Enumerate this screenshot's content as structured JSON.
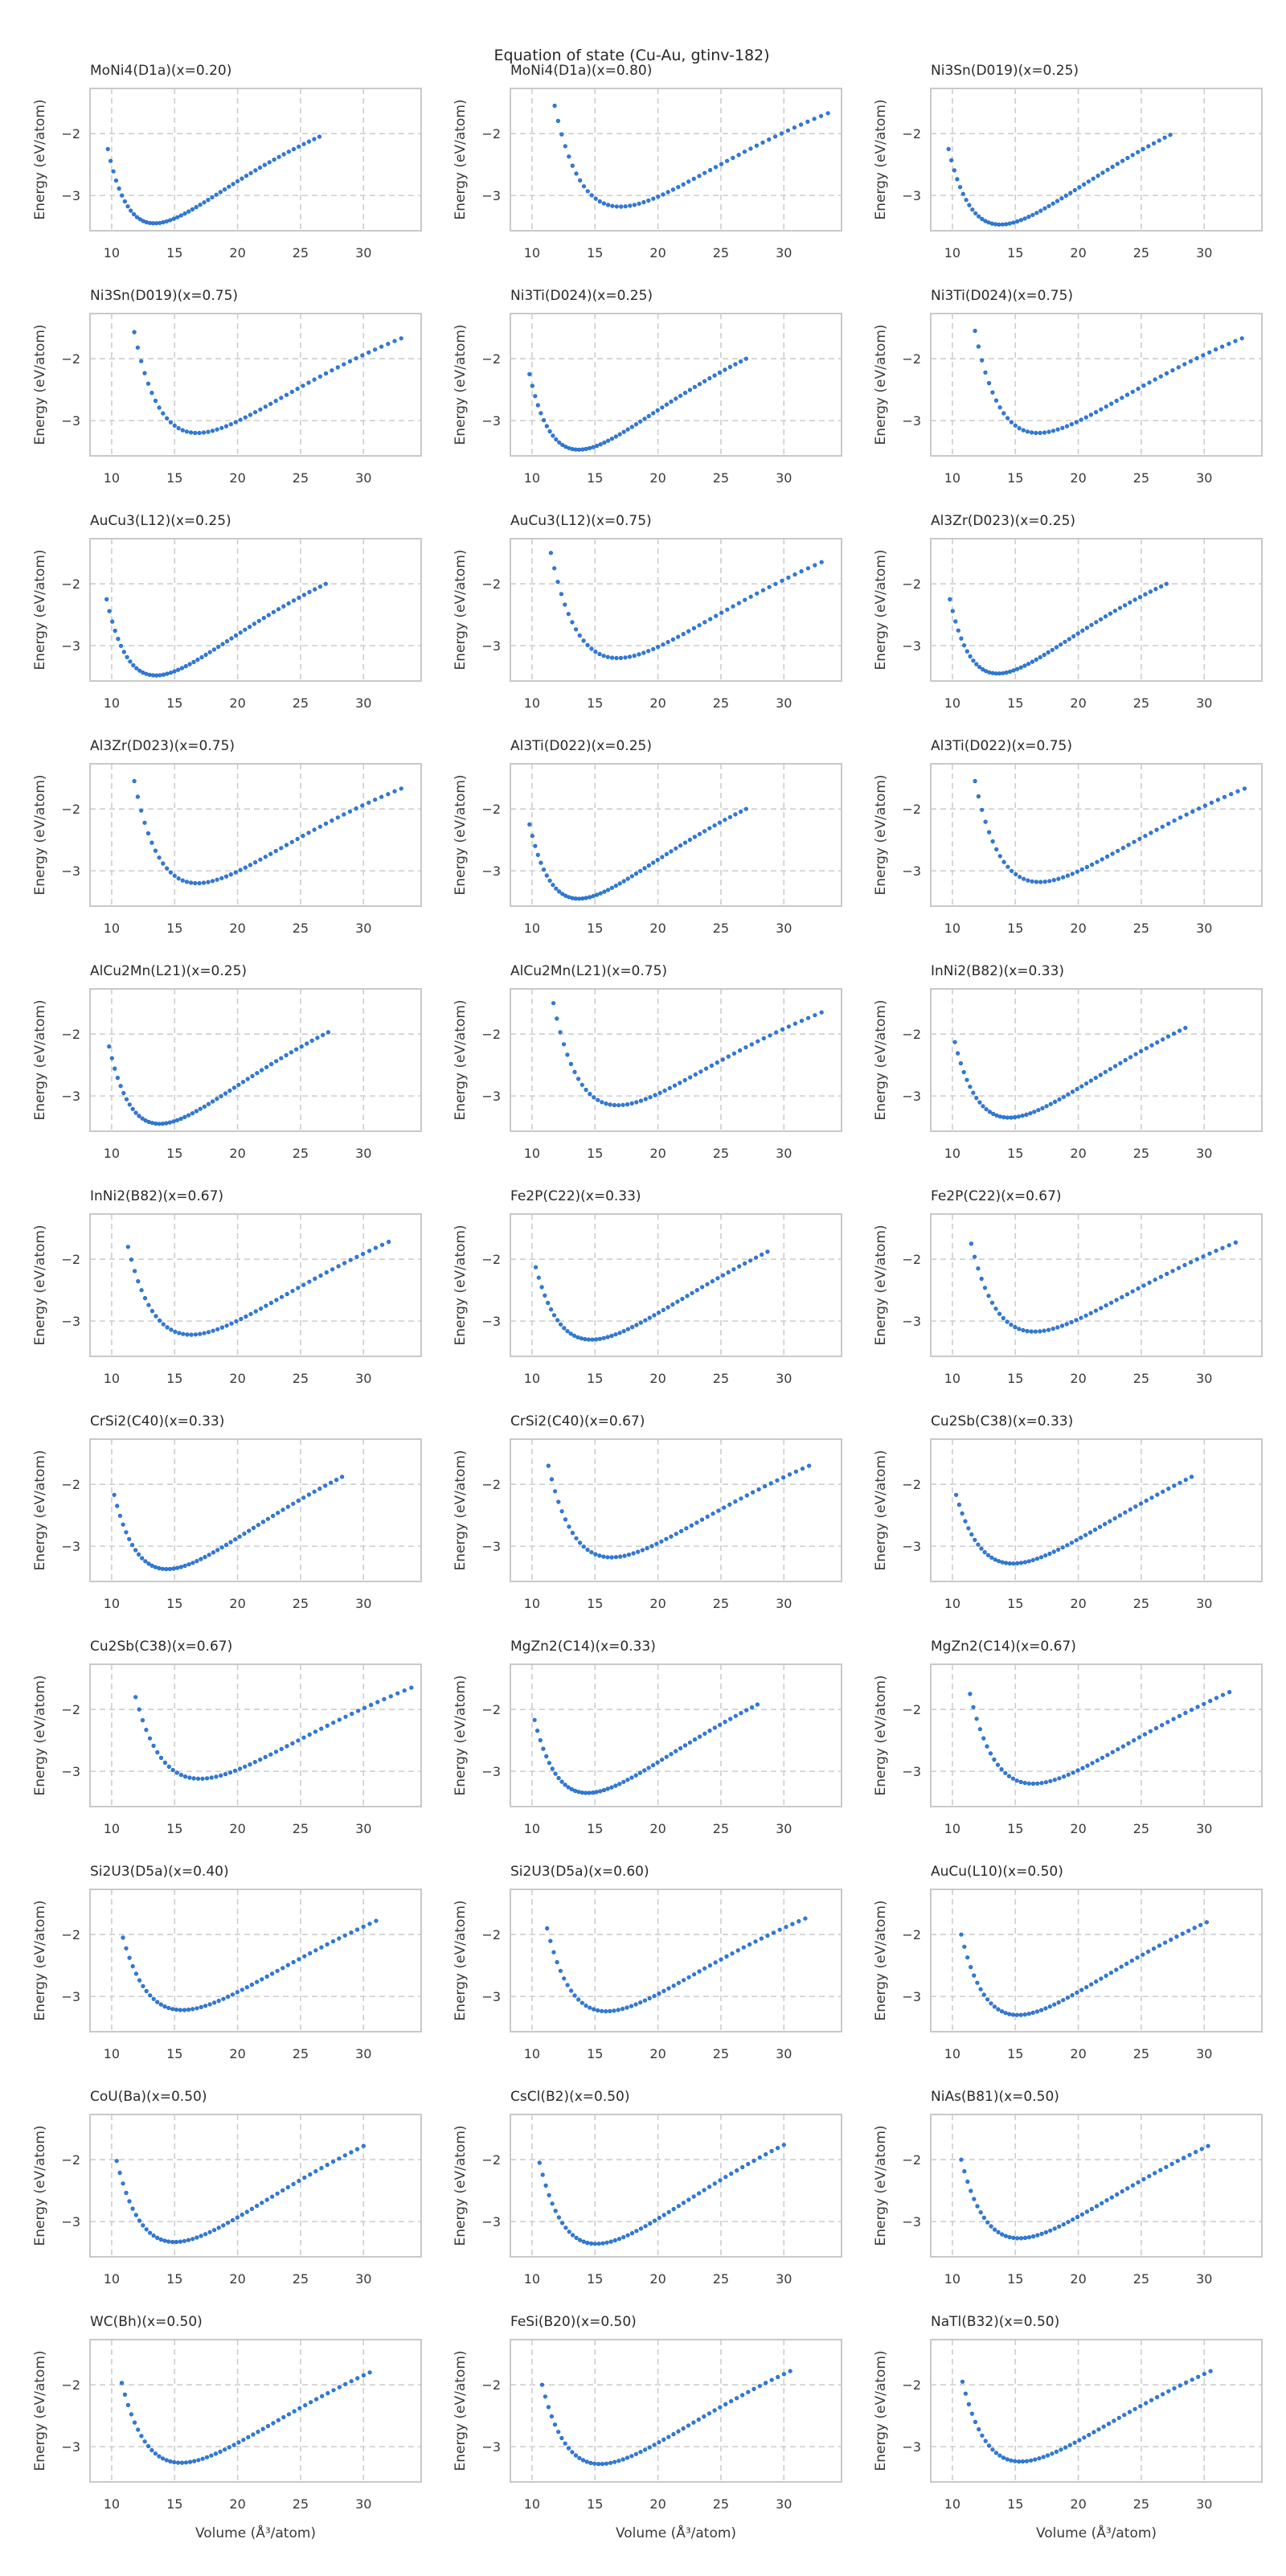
{
  "figure": {
    "suptitle": "Equation of state (Cu-Au, gtinv-182)",
    "colors": {
      "marker_fill": "#2e7cdf",
      "marker_edge": "#1a5cb0",
      "grid": "#cdcdcd",
      "spine": "#c9c9c9",
      "tick_text": "#3a3a3a",
      "title_text": "#2a2a2a",
      "background": "#ffffff"
    }
  },
  "chart_data": {
    "type": "scatter",
    "title": "Equation of state (Cu-Au, gtinv-182)",
    "xlabel": "Volume (Å³/atom)",
    "ylabel": "Energy (eV/atom)",
    "grid": true,
    "legend": "none",
    "xlim": [
      8.28,
      34.58
    ],
    "ylim": [
      -3.57,
      -1.27
    ],
    "xticks": [
      10,
      15,
      20,
      25,
      30
    ],
    "yticks": [
      -2,
      -3
    ],
    "n_points": 55,
    "sampling": "points uniformly spaced in cube root of volume between v_start and v_end; energy follows EOS curve through (v_start,e_start), minimum (v_min,e_min), (v_end,e_end)",
    "grid_shape": {
      "rows": 11,
      "cols": 3
    },
    "subplots": [
      {
        "title": "MoNi4(D1a)(x=0.20)",
        "v_start": 9.7,
        "e_start": -2.25,
        "v_min": 13.4,
        "e_min": -3.45,
        "v_end": 26.5,
        "e_end": -2.05
      },
      {
        "title": "MoNi4(D1a)(x=0.80)",
        "v_start": 11.8,
        "e_start": -1.55,
        "v_min": 17.0,
        "e_min": -3.18,
        "v_end": 33.5,
        "e_end": -1.67
      },
      {
        "title": "Ni3Sn(D019)(x=0.25)",
        "v_start": 9.7,
        "e_start": -2.25,
        "v_min": 13.8,
        "e_min": -3.47,
        "v_end": 27.3,
        "e_end": -2.02
      },
      {
        "title": "Ni3Sn(D019)(x=0.75)",
        "v_start": 11.8,
        "e_start": -1.57,
        "v_min": 16.8,
        "e_min": -3.2,
        "v_end": 33.0,
        "e_end": -1.67
      },
      {
        "title": "Ni3Ti(D024)(x=0.25)",
        "v_start": 9.8,
        "e_start": -2.25,
        "v_min": 13.7,
        "e_min": -3.47,
        "v_end": 27.0,
        "e_end": -2.0
      },
      {
        "title": "Ni3Ti(D024)(x=0.75)",
        "v_start": 11.8,
        "e_start": -1.55,
        "v_min": 16.8,
        "e_min": -3.2,
        "v_end": 33.0,
        "e_end": -1.67
      },
      {
        "title": "AuCu3(L12)(x=0.25)",
        "v_start": 9.6,
        "e_start": -2.25,
        "v_min": 13.5,
        "e_min": -3.48,
        "v_end": 27.0,
        "e_end": -2.0
      },
      {
        "title": "AuCu3(L12)(x=0.75)",
        "v_start": 11.5,
        "e_start": -1.5,
        "v_min": 16.8,
        "e_min": -3.2,
        "v_end": 33.0,
        "e_end": -1.65
      },
      {
        "title": "Al3Zr(D023)(x=0.25)",
        "v_start": 9.8,
        "e_start": -2.25,
        "v_min": 13.6,
        "e_min": -3.45,
        "v_end": 27.0,
        "e_end": -2.0
      },
      {
        "title": "Al3Zr(D023)(x=0.75)",
        "v_start": 11.8,
        "e_start": -1.55,
        "v_min": 16.8,
        "e_min": -3.2,
        "v_end": 33.0,
        "e_end": -1.67
      },
      {
        "title": "Al3Ti(D022)(x=0.25)",
        "v_start": 9.8,
        "e_start": -2.25,
        "v_min": 13.7,
        "e_min": -3.45,
        "v_end": 27.0,
        "e_end": -2.0
      },
      {
        "title": "Al3Ti(D022)(x=0.75)",
        "v_start": 11.8,
        "e_start": -1.55,
        "v_min": 16.9,
        "e_min": -3.18,
        "v_end": 33.2,
        "e_end": -1.67
      },
      {
        "title": "AlCu2Mn(L21)(x=0.25)",
        "v_start": 9.8,
        "e_start": -2.2,
        "v_min": 13.8,
        "e_min": -3.45,
        "v_end": 27.2,
        "e_end": -1.97
      },
      {
        "title": "AlCu2Mn(L21)(x=0.75)",
        "v_start": 11.7,
        "e_start": -1.5,
        "v_min": 16.8,
        "e_min": -3.15,
        "v_end": 33.0,
        "e_end": -1.65
      },
      {
        "title": "InNi2(B82)(x=0.33)",
        "v_start": 10.2,
        "e_start": -2.13,
        "v_min": 14.5,
        "e_min": -3.35,
        "v_end": 28.5,
        "e_end": -1.9
      },
      {
        "title": "InNi2(B82)(x=0.67)",
        "v_start": 11.3,
        "e_start": -1.8,
        "v_min": 16.3,
        "e_min": -3.22,
        "v_end": 32.0,
        "e_end": -1.72
      },
      {
        "title": "Fe2P(C22)(x=0.33)",
        "v_start": 10.3,
        "e_start": -2.13,
        "v_min": 14.7,
        "e_min": -3.3,
        "v_end": 28.7,
        "e_end": -1.88
      },
      {
        "title": "Fe2P(C22)(x=0.67)",
        "v_start": 11.5,
        "e_start": -1.75,
        "v_min": 16.5,
        "e_min": -3.17,
        "v_end": 32.5,
        "e_end": -1.73
      },
      {
        "title": "CrSi2(C40)(x=0.33)",
        "v_start": 10.2,
        "e_start": -2.17,
        "v_min": 14.4,
        "e_min": -3.37,
        "v_end": 28.3,
        "e_end": -1.88
      },
      {
        "title": "CrSi2(C40)(x=0.67)",
        "v_start": 11.3,
        "e_start": -1.7,
        "v_min": 16.3,
        "e_min": -3.18,
        "v_end": 32.0,
        "e_end": -1.7
      },
      {
        "title": "Cu2Sb(C38)(x=0.33)",
        "v_start": 10.3,
        "e_start": -2.17,
        "v_min": 14.8,
        "e_min": -3.28,
        "v_end": 29.0,
        "e_end": -1.88
      },
      {
        "title": "Cu2Sb(C38)(x=0.67)",
        "v_start": 11.9,
        "e_start": -1.8,
        "v_min": 17.0,
        "e_min": -3.12,
        "v_end": 33.8,
        "e_end": -1.65
      },
      {
        "title": "MgZn2(C14)(x=0.33)",
        "v_start": 10.2,
        "e_start": -2.17,
        "v_min": 14.4,
        "e_min": -3.35,
        "v_end": 27.9,
        "e_end": -1.92
      },
      {
        "title": "MgZn2(C14)(x=0.67)",
        "v_start": 11.4,
        "e_start": -1.75,
        "v_min": 16.4,
        "e_min": -3.2,
        "v_end": 32.0,
        "e_end": -1.72
      },
      {
        "title": "Si2U3(D5a)(x=0.40)",
        "v_start": 10.9,
        "e_start": -2.05,
        "v_min": 15.6,
        "e_min": -3.22,
        "v_end": 31.0,
        "e_end": -1.78
      },
      {
        "title": "Si2U3(D5a)(x=0.60)",
        "v_start": 11.2,
        "e_start": -1.9,
        "v_min": 15.9,
        "e_min": -3.24,
        "v_end": 31.7,
        "e_end": -1.74
      },
      {
        "title": "AuCu(L10)(x=0.50)",
        "v_start": 10.7,
        "e_start": -2.0,
        "v_min": 15.2,
        "e_min": -3.3,
        "v_end": 30.2,
        "e_end": -1.8
      },
      {
        "title": "CoU(Ba)(x=0.50)",
        "v_start": 10.4,
        "e_start": -2.02,
        "v_min": 15.0,
        "e_min": -3.33,
        "v_end": 30.0,
        "e_end": -1.78
      },
      {
        "title": "CsCl(B2)(x=0.50)",
        "v_start": 10.6,
        "e_start": -2.05,
        "v_min": 15.1,
        "e_min": -3.36,
        "v_end": 30.0,
        "e_end": -1.76
      },
      {
        "title": "NiAs(B81)(x=0.50)",
        "v_start": 10.7,
        "e_start": -2.0,
        "v_min": 15.3,
        "e_min": -3.27,
        "v_end": 30.3,
        "e_end": -1.78
      },
      {
        "title": "WC(Bh)(x=0.50)",
        "v_start": 10.8,
        "e_start": -1.97,
        "v_min": 15.5,
        "e_min": -3.26,
        "v_end": 30.5,
        "e_end": -1.8
      },
      {
        "title": "FeSi(B20)(x=0.50)",
        "v_start": 10.8,
        "e_start": -2.0,
        "v_min": 15.4,
        "e_min": -3.28,
        "v_end": 30.5,
        "e_end": -1.78
      },
      {
        "title": "NaTl(B32)(x=0.50)",
        "v_start": 10.8,
        "e_start": -1.95,
        "v_min": 15.4,
        "e_min": -3.24,
        "v_end": 30.5,
        "e_end": -1.78
      }
    ]
  }
}
